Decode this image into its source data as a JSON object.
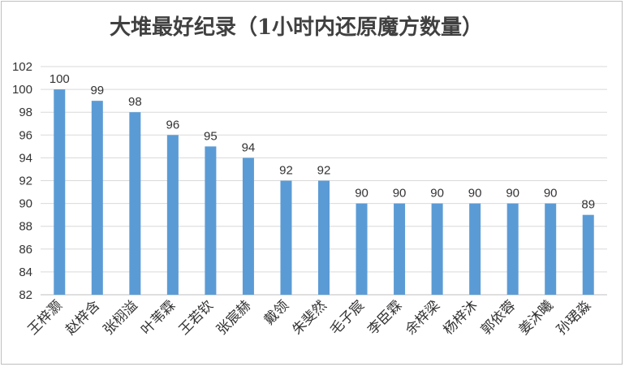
{
  "chart_data": {
    "type": "bar",
    "title": "大堆最好纪录（1小时内还原魔方数量）",
    "categories": [
      "王梓灏",
      "赵梓含",
      "张栩溢",
      "叶苇霖",
      "王若钦",
      "张宸赫",
      "戴领",
      "朱斐然",
      "毛子宸",
      "李臣霖",
      "余梓梁",
      "杨梓沐",
      "郭依蓉",
      "姜沐曦",
      "孙珺淼"
    ],
    "values": [
      100,
      99,
      98,
      96,
      95,
      94,
      92,
      92,
      90,
      90,
      90,
      90,
      90,
      90,
      89
    ],
    "ylim": [
      82,
      102
    ],
    "yticks": [
      "82",
      "84",
      "86",
      "88",
      "90",
      "92",
      "94",
      "96",
      "98",
      "100",
      "102"
    ],
    "grid": true,
    "legend": "none",
    "xlabel": "",
    "ylabel": "",
    "bar_color": "#5b9bd5"
  }
}
